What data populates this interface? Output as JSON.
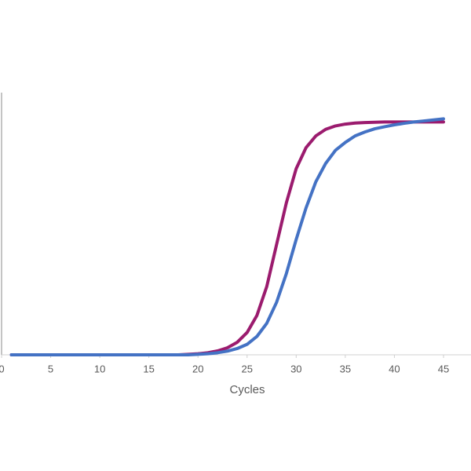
{
  "chart_data": {
    "type": "line",
    "x_label": "Cycles",
    "x": [
      1,
      2,
      3,
      4,
      5,
      6,
      7,
      8,
      9,
      10,
      11,
      12,
      13,
      14,
      15,
      16,
      17,
      18,
      19,
      20,
      21,
      22,
      23,
      24,
      25,
      26,
      27,
      28,
      29,
      30,
      31,
      32,
      33,
      34,
      35,
      36,
      37,
      38,
      39,
      40,
      41,
      42,
      43,
      44,
      45
    ],
    "series": [
      {
        "color": "#9b1b6e",
        "values": [
          0,
          0,
          0,
          0,
          0,
          0,
          0,
          0,
          0,
          0,
          0,
          0,
          0,
          0,
          0,
          0,
          0,
          0,
          0.002,
          0.004,
          0.008,
          0.015,
          0.027,
          0.048,
          0.085,
          0.15,
          0.26,
          0.42,
          0.58,
          0.71,
          0.79,
          0.835,
          0.86,
          0.873,
          0.88,
          0.884,
          0.886,
          0.887,
          0.888,
          0.888,
          0.888,
          0.888,
          0.888,
          0.888,
          0.888
        ]
      },
      {
        "color": "#4472c4",
        "values": [
          0,
          0,
          0,
          0,
          0,
          0,
          0,
          0,
          0,
          0,
          0,
          0,
          0,
          0,
          0,
          0,
          0,
          0,
          0,
          0.002,
          0.004,
          0.008,
          0.014,
          0.024,
          0.04,
          0.07,
          0.12,
          0.2,
          0.31,
          0.44,
          0.56,
          0.66,
          0.73,
          0.78,
          0.81,
          0.835,
          0.85,
          0.862,
          0.87,
          0.877,
          0.883,
          0.888,
          0.892,
          0.896,
          0.9
        ]
      }
    ],
    "xlim": [
      0,
      47.8
    ],
    "xticks": [
      0,
      5,
      10,
      15,
      20,
      25,
      30,
      35,
      40,
      45
    ],
    "ylim": [
      0,
      1
    ]
  }
}
